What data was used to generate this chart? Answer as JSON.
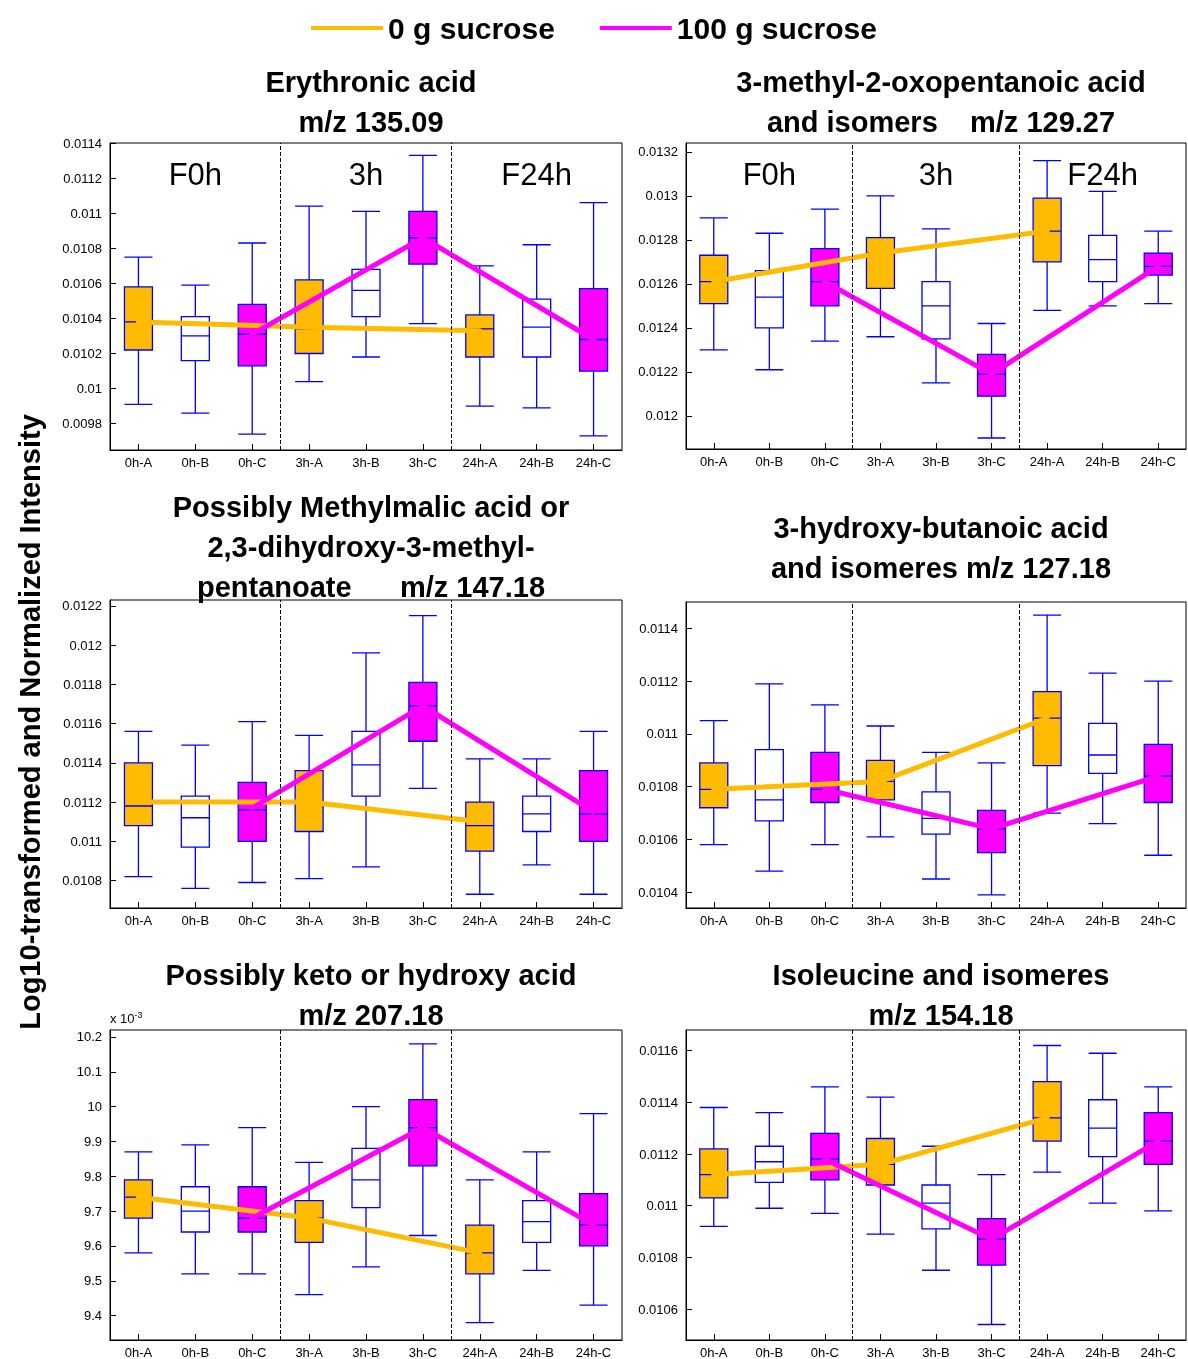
{
  "chart_data": [
    {
      "type": "box",
      "title": "Erythronic acid\nm/z 135.09",
      "categories": [
        "0h-A",
        "0h-B",
        "0h-C",
        "3h-A",
        "3h-B",
        "3h-C",
        "24h-A",
        "24h-B",
        "24h-C"
      ],
      "ylim": [
        0.00965,
        0.0114
      ],
      "yticks": [
        0.0098,
        0.01,
        0.0102,
        0.0104,
        0.0106,
        0.0108,
        0.011,
        0.0112,
        0.0114
      ],
      "grid": false,
      "marker": "none",
      "line_style": "solid",
      "legend": "top",
      "annotations": [
        "F0h",
        "3h",
        "F24h"
      ],
      "series": [
        {
          "colors": [
            "#ffbb00",
            "#ffffff",
            "#ff00ff",
            "#ffbb00",
            "#ffffff",
            "#ff00ff",
            "#ffbb00",
            "#ffffff",
            "#ff00ff"
          ],
          "boxes": [
            {
              "low": 0.00991,
              "q1": 0.01022,
              "median": 0.01038,
              "q3": 0.01058,
              "high": 0.01075
            },
            {
              "low": 0.00986,
              "q1": 0.01016,
              "median": 0.0103,
              "q3": 0.01041,
              "high": 0.01059
            },
            {
              "low": 0.00974,
              "q1": 0.01013,
              "median": 0.01031,
              "q3": 0.01048,
              "high": 0.01083
            },
            {
              "low": 0.01004,
              "q1": 0.0102,
              "median": 0.01034,
              "q3": 0.01062,
              "high": 0.01104
            },
            {
              "low": 0.01018,
              "q1": 0.01041,
              "median": 0.01056,
              "q3": 0.01068,
              "high": 0.01101
            },
            {
              "low": 0.01037,
              "q1": 0.01071,
              "median": 0.01086,
              "q3": 0.01101,
              "high": 0.01133
            },
            {
              "low": 0.0099,
              "q1": 0.01018,
              "median": 0.01034,
              "q3": 0.01042,
              "high": 0.0107
            },
            {
              "low": 0.00989,
              "q1": 0.01018,
              "median": 0.01035,
              "q3": 0.01051,
              "high": 0.01082
            },
            {
              "low": 0.00973,
              "q1": 0.0101,
              "median": 0.01028,
              "q3": 0.01057,
              "high": 0.01106
            }
          ]
        },
        {
          "type": "line",
          "name": "0 g sucrose",
          "color": "#ffbb00",
          "x": [
            "0h-A",
            "3h-A",
            "24h-A"
          ],
          "values": [
            0.01038,
            0.01035,
            0.01033
          ]
        },
        {
          "type": "line",
          "name": "100 g sucrose",
          "color": "#ff00ff",
          "x": [
            "0h-C",
            "3h-C",
            "24h-C"
          ],
          "values": [
            0.01031,
            0.01086,
            0.01028
          ]
        }
      ]
    },
    {
      "type": "box",
      "title": "3-methyl-2-oxopentanoic acid\nand isomers    m/z 129.27",
      "categories": [
        "0h-A",
        "0h-B",
        "0h-C",
        "3h-A",
        "3h-B",
        "3h-C",
        "24h-A",
        "24h-B",
        "24h-C"
      ],
      "ylim": [
        0.01185,
        0.01324
      ],
      "yticks": [
        0.012,
        0.0122,
        0.0124,
        0.0126,
        0.0128,
        0.013,
        0.0132
      ],
      "grid": false,
      "marker": "none",
      "line_style": "solid",
      "annotations": [
        "F0h",
        "3h",
        "F24h"
      ],
      "series": [
        {
          "colors": [
            "#ffbb00",
            "#ffffff",
            "#ff00ff",
            "#ffbb00",
            "#ffffff",
            "#ff00ff",
            "#ffbb00",
            "#ffffff",
            "#ff00ff"
          ],
          "boxes": [
            {
              "low": 0.0123,
              "q1": 0.01251,
              "median": 0.01261,
              "q3": 0.01273,
              "high": 0.0129
            },
            {
              "low": 0.01221,
              "q1": 0.0124,
              "median": 0.01254,
              "q3": 0.01266,
              "high": 0.01283
            },
            {
              "low": 0.01234,
              "q1": 0.0125,
              "median": 0.01261,
              "q3": 0.01276,
              "high": 0.01294
            },
            {
              "low": 0.01236,
              "q1": 0.01258,
              "median": 0.01274,
              "q3": 0.01281,
              "high": 0.013
            },
            {
              "low": 0.01215,
              "q1": 0.01235,
              "median": 0.0125,
              "q3": 0.01261,
              "high": 0.01285
            },
            {
              "low": 0.0119,
              "q1": 0.01209,
              "median": 0.01219,
              "q3": 0.01228,
              "high": 0.01242
            },
            {
              "low": 0.01248,
              "q1": 0.0127,
              "median": 0.01284,
              "q3": 0.01299,
              "high": 0.01316
            },
            {
              "low": 0.0125,
              "q1": 0.01261,
              "median": 0.01271,
              "q3": 0.01282,
              "high": 0.01302
            },
            {
              "low": 0.01251,
              "q1": 0.01264,
              "median": 0.01268,
              "q3": 0.01274,
              "high": 0.01284
            }
          ]
        },
        {
          "type": "line",
          "color": "#ffbb00",
          "x": [
            "0h-A",
            "3h-A",
            "24h-A"
          ],
          "values": [
            0.01261,
            0.01274,
            0.01284
          ]
        },
        {
          "type": "line",
          "color": "#ff00ff",
          "x": [
            "0h-C",
            "3h-C",
            "24h-C"
          ],
          "values": [
            0.01261,
            0.01219,
            0.01268
          ]
        }
      ]
    },
    {
      "type": "box",
      "title": "Possibly Methylmalic acid or\n2,3-dihydroxy-3-methyl-\npentanoate      m/z 147.18",
      "ylabel": "Log10-transformed and Normalized Intensity",
      "categories": [
        "0h-A",
        "0h-B",
        "0h-C",
        "3h-A",
        "3h-B",
        "3h-C",
        "24h-A",
        "24h-B",
        "24h-C"
      ],
      "ylim": [
        0.01066,
        0.01223
      ],
      "yticks": [
        0.0108,
        0.011,
        0.0112,
        0.0114,
        0.0116,
        0.0118,
        0.012,
        0.0122
      ],
      "grid": false,
      "marker": "none",
      "line_style": "solid",
      "series": [
        {
          "colors": [
            "#ffbb00",
            "#ffffff",
            "#ff00ff",
            "#ffbb00",
            "#ffffff",
            "#ff00ff",
            "#ffbb00",
            "#ffffff",
            "#ff00ff"
          ],
          "boxes": [
            {
              "low": 0.01082,
              "q1": 0.01108,
              "median": 0.01118,
              "q3": 0.0114,
              "high": 0.01156
            },
            {
              "low": 0.01076,
              "q1": 0.01097,
              "median": 0.01112,
              "q3": 0.01123,
              "high": 0.01149
            },
            {
              "low": 0.01079,
              "q1": 0.011,
              "median": 0.01116,
              "q3": 0.0113,
              "high": 0.01161
            },
            {
              "low": 0.01081,
              "q1": 0.01105,
              "median": 0.0112,
              "q3": 0.01136,
              "high": 0.01154
            },
            {
              "low": 0.01087,
              "q1": 0.01123,
              "median": 0.01139,
              "q3": 0.01156,
              "high": 0.01196
            },
            {
              "low": 0.01127,
              "q1": 0.01151,
              "median": 0.01169,
              "q3": 0.01181,
              "high": 0.01215
            },
            {
              "low": 0.01073,
              "q1": 0.01095,
              "median": 0.01108,
              "q3": 0.0112,
              "high": 0.01142
            },
            {
              "low": 0.01088,
              "q1": 0.01105,
              "median": 0.01114,
              "q3": 0.01123,
              "high": 0.01142
            },
            {
              "low": 0.01073,
              "q1": 0.011,
              "median": 0.01114,
              "q3": 0.01136,
              "high": 0.01156
            }
          ]
        },
        {
          "type": "line",
          "color": "#ffbb00",
          "x": [
            "0h-A",
            "3h-A",
            "24h-A"
          ],
          "values": [
            0.0112,
            0.0112,
            0.0111
          ]
        },
        {
          "type": "line",
          "color": "#ff00ff",
          "x": [
            "0h-C",
            "3h-C",
            "24h-C"
          ],
          "values": [
            0.01117,
            0.01169,
            0.01115
          ]
        }
      ]
    },
    {
      "type": "box",
      "title": "3-hydroxy-butanoic acid\nand isomeres m/z 127.18",
      "categories": [
        "0h-A",
        "0h-B",
        "0h-C",
        "3h-A",
        "3h-B",
        "3h-C",
        "24h-A",
        "24h-B",
        "24h-C"
      ],
      "ylim": [
        0.01034,
        0.0115
      ],
      "yticks": [
        0.0104,
        0.0106,
        0.0108,
        0.011,
        0.0112,
        0.0114
      ],
      "grid": false,
      "marker": "none",
      "line_style": "solid",
      "series": [
        {
          "colors": [
            "#ffbb00",
            "#ffffff",
            "#ff00ff",
            "#ffbb00",
            "#ffffff",
            "#ff00ff",
            "#ffbb00",
            "#ffffff",
            "#ff00ff"
          ],
          "boxes": [
            {
              "low": 0.01058,
              "q1": 0.01072,
              "median": 0.01079,
              "q3": 0.01089,
              "high": 0.01105
            },
            {
              "low": 0.01048,
              "q1": 0.01067,
              "median": 0.01075,
              "q3": 0.01094,
              "high": 0.01119
            },
            {
              "low": 0.01058,
              "q1": 0.01074,
              "median": 0.01079,
              "q3": 0.01093,
              "high": 0.01111
            },
            {
              "low": 0.01061,
              "q1": 0.01075,
              "median": 0.01082,
              "q3": 0.0109,
              "high": 0.01103
            },
            {
              "low": 0.01045,
              "q1": 0.01062,
              "median": 0.01068,
              "q3": 0.01078,
              "high": 0.01093
            },
            {
              "low": 0.01039,
              "q1": 0.01055,
              "median": 0.01064,
              "q3": 0.01071,
              "high": 0.01089
            },
            {
              "low": 0.0107,
              "q1": 0.01088,
              "median": 0.01106,
              "q3": 0.01116,
              "high": 0.01145
            },
            {
              "low": 0.01066,
              "q1": 0.01085,
              "median": 0.01092,
              "q3": 0.01104,
              "high": 0.01123
            },
            {
              "low": 0.01054,
              "q1": 0.01074,
              "median": 0.01084,
              "q3": 0.01096,
              "high": 0.0112
            }
          ]
        },
        {
          "type": "line",
          "color": "#ffbb00",
          "x": [
            "0h-A",
            "3h-A",
            "24h-A"
          ],
          "values": [
            0.01079,
            0.01082,
            0.01106
          ]
        },
        {
          "type": "line",
          "color": "#ff00ff",
          "x": [
            "0h-C",
            "3h-C",
            "24h-C"
          ],
          "values": [
            0.01079,
            0.01064,
            0.01084
          ]
        }
      ]
    },
    {
      "type": "box",
      "title": "Possibly keto or hydroxy acid\nm/z 207.18",
      "annotations": [
        "x 10$^{-3}$"
      ],
      "categories": [
        "0h-A",
        "0h-B",
        "0h-C",
        "3h-A",
        "3h-B",
        "3h-C",
        "24h-A",
        "24h-B",
        "24h-C"
      ],
      "ylim": [
        9.33,
        10.22
      ],
      "yticks": [
        9.4,
        9.5,
        9.6,
        9.7,
        9.8,
        9.9,
        10,
        10.1,
        10.2
      ],
      "grid": false,
      "marker": "none",
      "line_style": "solid",
      "series": [
        {
          "colors": [
            "#ffbb00",
            "#ffffff",
            "#ff00ff",
            "#ffbb00",
            "#ffffff",
            "#ff00ff",
            "#ffbb00",
            "#ffffff",
            "#ff00ff"
          ],
          "boxes": [
            {
              "low": 9.58,
              "q1": 9.68,
              "median": 9.74,
              "q3": 9.79,
              "high": 9.87
            },
            {
              "low": 9.52,
              "q1": 9.64,
              "median": 9.7,
              "q3": 9.77,
              "high": 9.89
            },
            {
              "low": 9.52,
              "q1": 9.64,
              "median": 9.68,
              "q3": 9.77,
              "high": 9.94
            },
            {
              "low": 9.46,
              "q1": 9.61,
              "median": 9.68,
              "q3": 9.73,
              "high": 9.84
            },
            {
              "low": 9.54,
              "q1": 9.71,
              "median": 9.79,
              "q3": 9.88,
              "high": 10.0
            },
            {
              "low": 9.63,
              "q1": 9.83,
              "median": 9.94,
              "q3": 10.02,
              "high": 10.18
            },
            {
              "low": 9.38,
              "q1": 9.52,
              "median": 9.58,
              "q3": 9.66,
              "high": 9.79
            },
            {
              "low": 9.53,
              "q1": 9.61,
              "median": 9.67,
              "q3": 9.73,
              "high": 9.87
            },
            {
              "low": 9.43,
              "q1": 9.6,
              "median": 9.66,
              "q3": 9.75,
              "high": 9.98
            }
          ]
        },
        {
          "type": "line",
          "color": "#ffbb00",
          "x": [
            "0h-A",
            "3h-A",
            "24h-A"
          ],
          "values": [
            9.74,
            9.68,
            9.58
          ]
        },
        {
          "type": "line",
          "color": "#ff00ff",
          "x": [
            "0h-C",
            "3h-C",
            "24h-C"
          ],
          "values": [
            9.68,
            9.94,
            9.66
          ]
        }
      ]
    },
    {
      "type": "box",
      "title": "Isoleucine and isomeres\nm/z 154.18",
      "categories": [
        "0h-A",
        "0h-B",
        "0h-C",
        "3h-A",
        "3h-B",
        "3h-C",
        "24h-A",
        "24h-B",
        "24h-C"
      ],
      "ylim": [
        0.01048,
        0.01168
      ],
      "yticks": [
        0.0106,
        0.0108,
        0.011,
        0.0112,
        0.0114,
        0.0116
      ],
      "grid": false,
      "marker": "none",
      "line_style": "solid",
      "series": [
        {
          "colors": [
            "#ffbb00",
            "#ffffff",
            "#ff00ff",
            "#ffbb00",
            "#ffffff",
            "#ff00ff",
            "#ffbb00",
            "#ffffff",
            "#ff00ff"
          ],
          "boxes": [
            {
              "low": 0.01092,
              "q1": 0.01103,
              "median": 0.01112,
              "q3": 0.01122,
              "high": 0.01138
            },
            {
              "low": 0.01099,
              "q1": 0.01109,
              "median": 0.01117,
              "q3": 0.01123,
              "high": 0.01136
            },
            {
              "low": 0.01097,
              "q1": 0.0111,
              "median": 0.01118,
              "q3": 0.01128,
              "high": 0.01146
            },
            {
              "low": 0.01089,
              "q1": 0.01108,
              "median": 0.01116,
              "q3": 0.01126,
              "high": 0.01142
            },
            {
              "low": 0.01075,
              "q1": 0.01091,
              "median": 0.01101,
              "q3": 0.01108,
              "high": 0.01123
            },
            {
              "low": 0.01054,
              "q1": 0.01077,
              "median": 0.01087,
              "q3": 0.01095,
              "high": 0.01112
            },
            {
              "low": 0.01113,
              "q1": 0.01125,
              "median": 0.01134,
              "q3": 0.01148,
              "high": 0.01162
            },
            {
              "low": 0.01101,
              "q1": 0.01119,
              "median": 0.0113,
              "q3": 0.01141,
              "high": 0.01159
            },
            {
              "low": 0.01098,
              "q1": 0.01116,
              "median": 0.01125,
              "q3": 0.01136,
              "high": 0.01146
            }
          ]
        },
        {
          "type": "line",
          "color": "#ffbb00",
          "x": [
            "0h-A",
            "3h-A",
            "24h-A"
          ],
          "values": [
            0.01112,
            0.01116,
            0.01134
          ]
        },
        {
          "type": "line",
          "color": "#ff00ff",
          "x": [
            "0h-C",
            "3h-C",
            "24h-C"
          ],
          "values": [
            0.01118,
            0.01087,
            0.01125
          ]
        }
      ]
    }
  ]
}
